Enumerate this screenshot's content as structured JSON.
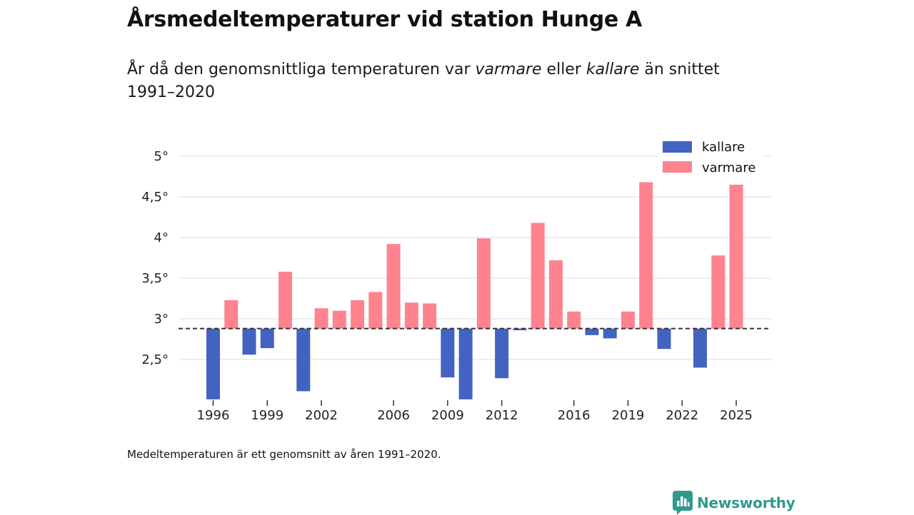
{
  "header": {
    "title": "Årsmedeltemperaturer vid station Hunge A",
    "subtitle_parts": {
      "a": "År då den genomsnittliga temperaturen var ",
      "warm": "varmare",
      "b": " eller ",
      "cold": "kallare",
      "c": " än snittet 1991–2020"
    }
  },
  "chart_data": {
    "type": "bar",
    "title": "Årsmedeltemperaturer vid station Hunge A",
    "xlabel": "",
    "ylabel": "",
    "baseline": 2.88,
    "ylim": [
      2.0,
      5.2
    ],
    "xlim": [
      1995.5,
      2025.6
    ],
    "yticks": [
      2.5,
      3,
      3.5,
      4,
      4.5,
      5
    ],
    "ytick_labels": [
      "2,5°",
      "3°",
      "3,5°",
      "4°",
      "4,5°",
      "5°"
    ],
    "xticks": [
      1996,
      1999,
      2002,
      2006,
      2009,
      2012,
      2016,
      2019,
      2022,
      2025
    ],
    "xtick_labels": [
      "1996",
      "1999",
      "2002",
      "2006",
      "2009",
      "2012",
      "2016",
      "2019",
      "2022",
      "2025"
    ],
    "years": [
      1996,
      1997,
      1998,
      1999,
      2000,
      2001,
      2002,
      2003,
      2004,
      2005,
      2006,
      2007,
      2008,
      2009,
      2010,
      2011,
      2012,
      2013,
      2014,
      2015,
      2016,
      2017,
      2018,
      2019,
      2020,
      2021,
      2022,
      2023,
      2024,
      2025
    ],
    "values": [
      2.01,
      3.23,
      2.56,
      2.64,
      3.58,
      2.11,
      3.13,
      3.1,
      3.23,
      3.33,
      3.92,
      3.2,
      3.19,
      2.28,
      2.01,
      3.99,
      2.27,
      2.86,
      4.18,
      3.72,
      3.09,
      2.8,
      2.76,
      3.09,
      4.68,
      2.63,
      null,
      2.4,
      3.78,
      4.65
    ],
    "legend": [
      {
        "label": "kallare",
        "color": "#4263c1"
      },
      {
        "label": "varmare",
        "color": "#fe838f"
      }
    ],
    "legend_position": "top-right",
    "colors": {
      "cold": "#4263c1",
      "warm": "#fe838f",
      "grid": "#dcdcdc",
      "axis": "#333333",
      "baseline": "#333333"
    }
  },
  "footnote": "Medeltemperaturen är ett genomsnitt av åren 1991–2020.",
  "brand": {
    "name": "Newsworthy",
    "color": "#2e9a8e",
    "icon": "newsworthy-logo-icon"
  }
}
